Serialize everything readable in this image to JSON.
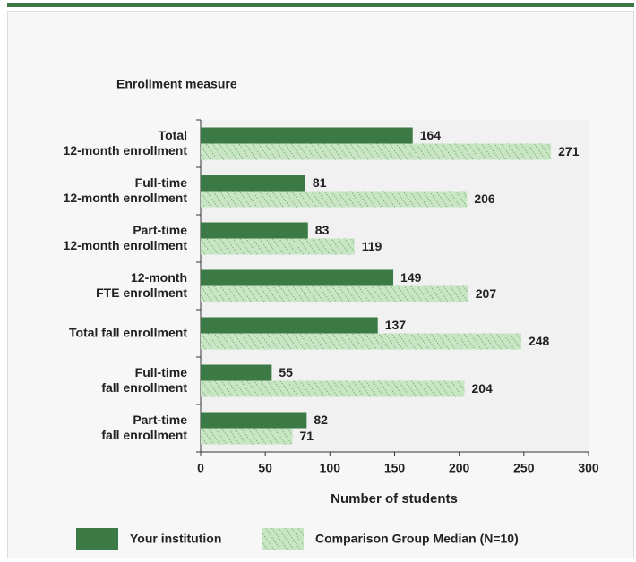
{
  "chart_data": {
    "type": "bar",
    "orientation": "horizontal",
    "y_axis_title": "Enrollment measure",
    "x_axis_title": "Number of students",
    "categories": [
      [
        "Total",
        "12-month enrollment"
      ],
      [
        "Full-time",
        "12-month enrollment"
      ],
      [
        "Part-time",
        "12-month enrollment"
      ],
      [
        "12-month",
        "FTE enrollment"
      ],
      [
        "Total fall enrollment"
      ],
      [
        "Full-time",
        "fall enrollment"
      ],
      [
        "Part-time",
        "fall enrollment"
      ]
    ],
    "series": [
      {
        "name": "Your institution",
        "color": "#3b7a45",
        "values": [
          164,
          81,
          83,
          149,
          137,
          55,
          82
        ]
      },
      {
        "name": "Comparison Group Median (N=10)",
        "color": "#c8e6c3",
        "hatch": true,
        "values": [
          271,
          206,
          119,
          207,
          248,
          204,
          71
        ]
      }
    ],
    "xlim": [
      0,
      300
    ],
    "xticks": [
      0,
      50,
      100,
      150,
      200,
      250,
      300
    ],
    "grid": false
  }
}
